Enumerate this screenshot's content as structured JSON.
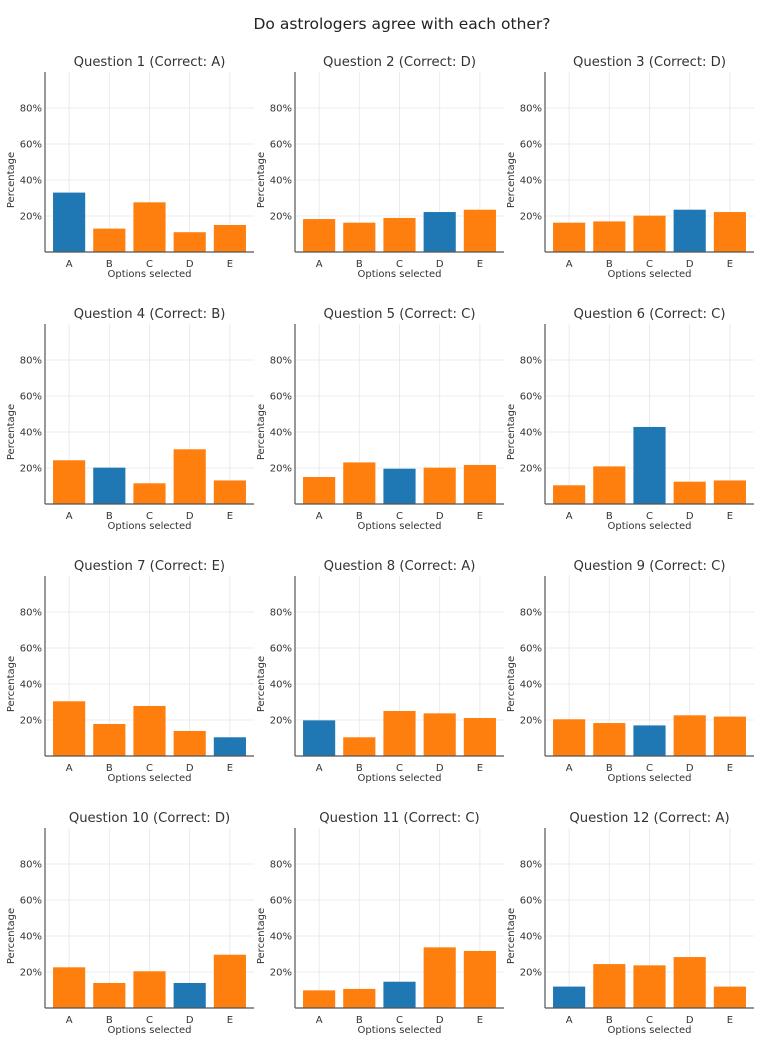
{
  "chart_data": {
    "type": "bar",
    "title": "Do astrologers agree with each other?",
    "colors": {
      "correct": "#1f77b4",
      "incorrect": "#ff7f0e"
    },
    "categories": [
      "A",
      "B",
      "C",
      "D",
      "E"
    ],
    "xlabel": "Options selected",
    "ylabel": "Percentage",
    "ylim": [
      0,
      100
    ],
    "yticks": [
      20,
      40,
      60,
      80
    ],
    "ytick_labels": [
      "20%",
      "40%",
      "60%",
      "80%"
    ],
    "grid": true,
    "panels": [
      {
        "title": "Question 1 (Correct: A)",
        "correct": "A",
        "values": [
          33.0,
          13.0,
          27.6,
          11.0,
          15.0
        ]
      },
      {
        "title": "Question 2 (Correct: D)",
        "correct": "D",
        "values": [
          18.3,
          16.3,
          18.9,
          22.2,
          23.5
        ]
      },
      {
        "title": "Question 3 (Correct: D)",
        "correct": "D",
        "values": [
          16.3,
          17.0,
          20.2,
          23.5,
          22.2
        ]
      },
      {
        "title": "Question 4 (Correct: B)",
        "correct": "B",
        "values": [
          24.3,
          20.2,
          11.5,
          30.4,
          13.1
        ]
      },
      {
        "title": "Question 5 (Correct: C)",
        "correct": "C",
        "values": [
          15.0,
          23.1,
          19.6,
          20.2,
          21.7
        ]
      },
      {
        "title": "Question 6 (Correct: C)",
        "correct": "C",
        "values": [
          10.4,
          20.9,
          42.8,
          12.4,
          13.1
        ]
      },
      {
        "title": "Question 7 (Correct: E)",
        "correct": "E",
        "values": [
          30.4,
          17.8,
          27.8,
          13.9,
          10.4
        ]
      },
      {
        "title": "Question 8 (Correct: A)",
        "correct": "A",
        "values": [
          19.8,
          10.4,
          25.0,
          23.7,
          21.1
        ]
      },
      {
        "title": "Question 9 (Correct: C)",
        "correct": "C",
        "values": [
          20.4,
          18.3,
          17.0,
          22.6,
          21.9
        ]
      },
      {
        "title": "Question 10 (Correct: D)",
        "correct": "D",
        "values": [
          22.6,
          13.9,
          20.4,
          13.9,
          29.6
        ]
      },
      {
        "title": "Question 11 (Correct: C)",
        "correct": "C",
        "values": [
          9.8,
          10.6,
          14.6,
          33.7,
          31.7
        ]
      },
      {
        "title": "Question 12 (Correct: A)",
        "correct": "A",
        "values": [
          11.9,
          24.4,
          23.7,
          28.3,
          11.9
        ]
      }
    ]
  }
}
